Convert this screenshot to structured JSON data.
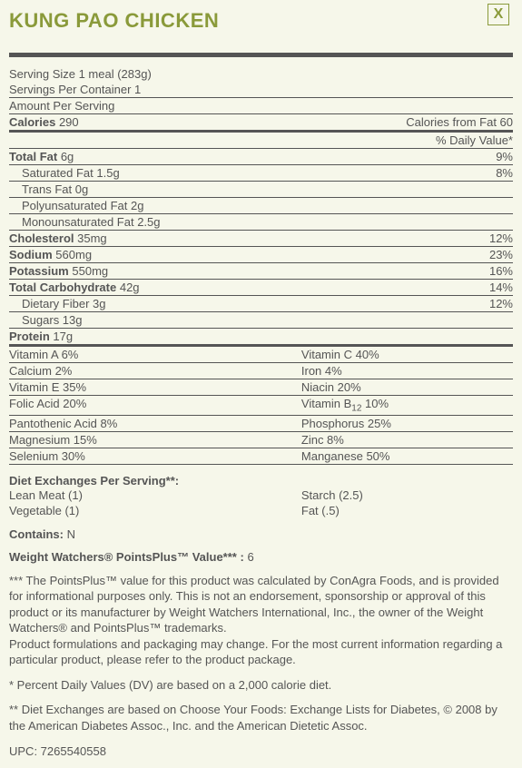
{
  "close_label": "X",
  "title": "KUNG PAO CHICKEN",
  "serving_size": "Serving Size 1 meal (283g)",
  "servings_per_container": "Servings Per Container 1",
  "amount_per_serving": "Amount Per Serving",
  "calories_label": "Calories",
  "calories_value": "290",
  "calories_from_fat": "Calories from Fat 60",
  "pct_dv_header": "% Daily Value*",
  "nutrients": {
    "total_fat": {
      "label": "Total Fat",
      "amt": "6g",
      "dv": "9%"
    },
    "sat_fat": {
      "label": "Saturated Fat 1.5g",
      "dv": "8%"
    },
    "trans_fat": {
      "label": "Trans Fat 0g"
    },
    "poly_fat": {
      "label": "Polyunsaturated Fat 2g"
    },
    "mono_fat": {
      "label": "Monounsaturated Fat 2.5g"
    },
    "cholesterol": {
      "label": "Cholesterol",
      "amt": "35mg",
      "dv": "12%"
    },
    "sodium": {
      "label": "Sodium",
      "amt": "560mg",
      "dv": "23%"
    },
    "potassium": {
      "label": "Potassium",
      "amt": "550mg",
      "dv": "16%"
    },
    "total_carb": {
      "label": "Total Carbohydrate",
      "amt": "42g",
      "dv": "14%"
    },
    "fiber": {
      "label": "Dietary Fiber 3g",
      "dv": "12%"
    },
    "sugars": {
      "label": "Sugars 13g"
    },
    "protein": {
      "label": "Protein",
      "amt": "17g"
    }
  },
  "vitamins": [
    {
      "l": "Vitamin A 6%",
      "r": "Vitamin C 40%"
    },
    {
      "l": "Calcium 2%",
      "r": "Iron 4%"
    },
    {
      "l": "Vitamin E 35%",
      "r": "Niacin 20%"
    },
    {
      "l": "Folic Acid 20%",
      "r": "Vitamin B",
      "r_sub": "12",
      "r2": " 10%"
    },
    {
      "l": "Pantothenic Acid 8%",
      "r": "Phosphorus 25%"
    },
    {
      "l": "Magnesium 15%",
      "r": "Zinc 8%"
    },
    {
      "l": "Selenium 30%",
      "r": "Manganese 50%"
    }
  ],
  "diet_exch_header": "Diet Exchanges Per Serving**:",
  "diet_exch": [
    {
      "l": "Lean Meat (1)",
      "r": "Starch (2.5)"
    },
    {
      "l": "Vegetable (1)",
      "r": "Fat (.5)"
    }
  ],
  "contains_label": "Contains:",
  "contains_value": "N",
  "ww_label": "Weight Watchers® PointsPlus™ Value***  :",
  "ww_value": "6",
  "footnote_pp": "*** The PointsPlus™ value for this product was calculated by ConAgra Foods, and is provided for informational purposes only. This is not an endorsement, sponsorship or approval of this product or its manufacturer by Weight Watchers International, Inc., the owner of the Weight Watchers® and PointsPlus™ trademarks.",
  "footnote_pkg": "Product formulations and packaging may change. For the most current information regarding a particular product, please refer to the product package.",
  "footnote_dv": "* Percent Daily Values (DV) are based on a 2,000 calorie diet.",
  "footnote_de": "** Diet Exchanges are based on Choose Your Foods: Exchange Lists for Diabetes, © 2008 by the American Diabetes Assoc., Inc. and the American Dietetic Assoc.",
  "upc": "UPC: 7265540558"
}
